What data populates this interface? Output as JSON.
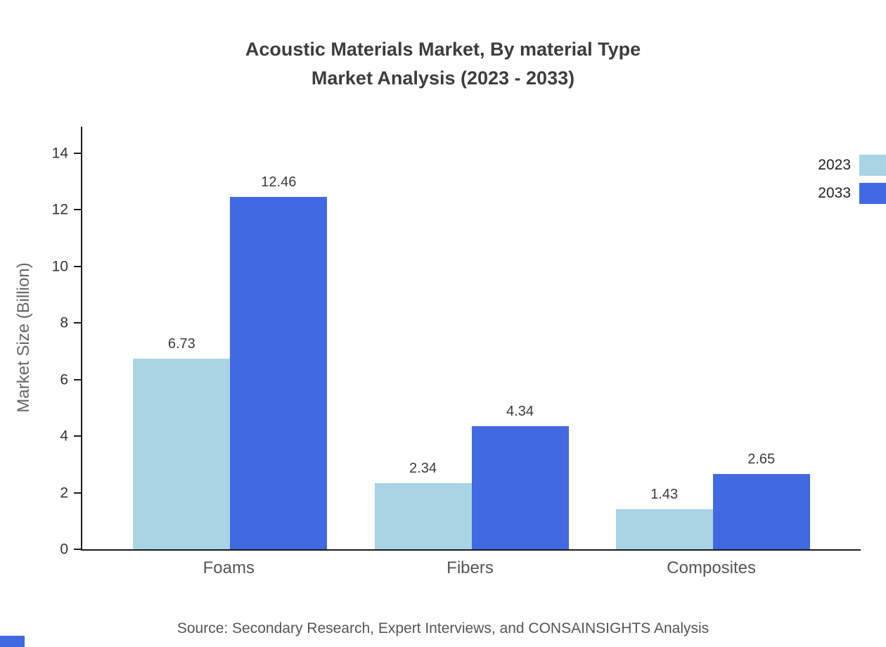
{
  "title": {
    "line1": "Acoustic Materials Market, By material Type",
    "line2": "Market Analysis (2023 - 2033)"
  },
  "source": "Source: Secondary Research, Expert Interviews, and CONSAINSIGHTS Analysis",
  "chart_data": {
    "type": "bar",
    "categories": [
      "Foams",
      "Fibers",
      "Composites"
    ],
    "series": [
      {
        "name": "2023",
        "color": "#a9d4e4",
        "values": [
          6.73,
          2.34,
          1.43
        ]
      },
      {
        "name": "2033",
        "color": "#4169e1",
        "values": [
          12.46,
          4.34,
          2.65
        ]
      }
    ],
    "title": "Acoustic Materials Market, By material Type Market Analysis (2023 - 2033)",
    "xlabel": "",
    "ylabel": "Market Size (Billion)",
    "ylim": [
      0,
      14
    ],
    "yticks": [
      0,
      2,
      4,
      6,
      8,
      10,
      12,
      14
    ],
    "legend_position": "top-right",
    "grid": false,
    "value_label_decimals": 2
  },
  "colors": {
    "accent": "#4169e1",
    "axis": "#1a1a1a",
    "title_text": "#3d3d3d",
    "source_text": "#555555"
  }
}
